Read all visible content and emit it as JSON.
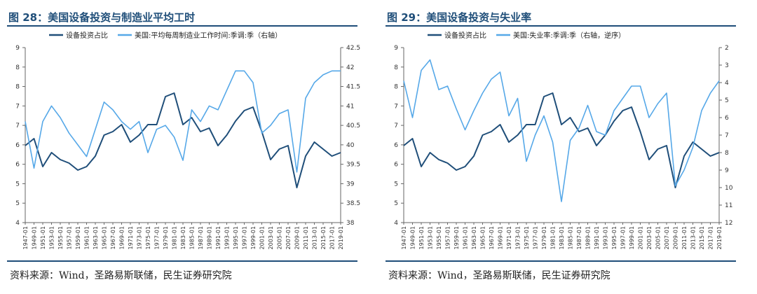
{
  "panels": [
    {
      "title": "图 28：美国设备投资与制造业平均工时",
      "source": "资料来源：Wind，圣路易斯联储，民生证券研究院"
    },
    {
      "title": "图 29：美国设备投资与失业率",
      "source": "资料来源：Wind，圣路易斯联储，民生证券研究院"
    }
  ],
  "colors": {
    "dark": "#1f4e79",
    "light": "#56a8e8",
    "axis": "#666666"
  },
  "chart_data": [
    {
      "type": "line",
      "x_labels": [
        "1947-01",
        "1949-01",
        "1951-01",
        "1953-01",
        "1955-01",
        "1957-01",
        "1959-01",
        "1961-01",
        "1963-01",
        "1965-01",
        "1967-01",
        "1969-01",
        "1971-01",
        "1973-01",
        "1975-01",
        "1977-01",
        "1979-01",
        "1981-01",
        "1983-01",
        "1985-01",
        "1987-01",
        "1989-01",
        "1991-01",
        "1993-01",
        "1995-01",
        "1997-01",
        "1999-01",
        "2001-01",
        "2003-01",
        "2005-01",
        "2007-01",
        "2009-01",
        "2011-01",
        "2013-01",
        "2015-01",
        "2017-01",
        "2019-01"
      ],
      "left_axis": {
        "ticks": [
          "9",
          "8",
          "8",
          "7",
          "7",
          "6",
          "6",
          "5",
          "5",
          "4"
        ],
        "range": [
          4,
          9
        ]
      },
      "right_axis": {
        "ticks": [
          "42.5",
          "42",
          "41.5",
          "41",
          "40.5",
          "40",
          "39.5",
          "39",
          "38.5",
          "38"
        ],
        "range": [
          38,
          42.5
        ],
        "reversed": false
      },
      "series": [
        {
          "name": "设备投资占比",
          "axis": "left",
          "values": [
            6.2,
            6.4,
            5.6,
            6.0,
            5.8,
            5.7,
            5.5,
            5.6,
            5.9,
            6.5,
            6.6,
            6.8,
            6.3,
            6.5,
            6.8,
            6.8,
            7.6,
            7.7,
            6.8,
            7.0,
            6.6,
            6.7,
            6.2,
            6.5,
            6.9,
            7.2,
            7.3,
            6.6,
            5.8,
            6.1,
            6.2,
            5.0,
            5.9,
            6.3,
            6.1,
            5.9,
            6.0
          ]
        },
        {
          "name": "美国:平均每周制造业工作时间:季调:季（右轴）",
          "axis": "right",
          "values": [
            40.6,
            39.4,
            40.6,
            41.0,
            40.7,
            40.3,
            40.0,
            39.7,
            40.4,
            41.1,
            40.9,
            40.6,
            40.4,
            40.6,
            39.8,
            40.4,
            40.5,
            40.2,
            39.6,
            40.9,
            40.6,
            41.0,
            40.9,
            41.4,
            41.9,
            41.9,
            41.6,
            40.3,
            40.5,
            40.8,
            40.9,
            39.3,
            41.2,
            41.6,
            41.8,
            41.9,
            41.9
          ]
        }
      ]
    },
    {
      "type": "line",
      "x_labels": [
        "1947-01",
        "1949-01",
        "1951-01",
        "1953-01",
        "1955-01",
        "1957-01",
        "1959-01",
        "1961-01",
        "1963-01",
        "1965-01",
        "1967-01",
        "1969-01",
        "1971-01",
        "1973-01",
        "1975-01",
        "1977-01",
        "1979-01",
        "1981-01",
        "1983-01",
        "1985-01",
        "1987-01",
        "1989-01",
        "1991-01",
        "1993-01",
        "1995-01",
        "1997-01",
        "1999-01",
        "2001-01",
        "2003-01",
        "2005-01",
        "2007-01",
        "2009-01",
        "2011-01",
        "2013-01",
        "2015-01",
        "2017-01",
        "2019-01"
      ],
      "left_axis": {
        "ticks": [
          "9",
          "8",
          "8",
          "7",
          "7",
          "6",
          "6",
          "5",
          "5",
          "4"
        ],
        "range": [
          4,
          9
        ]
      },
      "right_axis": {
        "ticks": [
          "2",
          "3",
          "4",
          "5",
          "6",
          "7",
          "8",
          "9",
          "10",
          "11",
          "12"
        ],
        "range": [
          2,
          12
        ],
        "reversed": true
      },
      "series": [
        {
          "name": "设备投资占比",
          "axis": "left",
          "values": [
            6.2,
            6.4,
            5.6,
            6.0,
            5.8,
            5.7,
            5.5,
            5.6,
            5.9,
            6.5,
            6.6,
            6.8,
            6.3,
            6.5,
            6.8,
            6.8,
            7.6,
            7.7,
            6.8,
            7.0,
            6.6,
            6.7,
            6.2,
            6.5,
            6.9,
            7.2,
            7.3,
            6.6,
            5.8,
            6.1,
            6.2,
            5.0,
            5.9,
            6.3,
            6.1,
            5.9,
            6.0
          ]
        },
        {
          "name": "美国:失业率:季调:季（右轴，逆序）",
          "axis": "right",
          "values": [
            3.9,
            6.0,
            3.3,
            2.7,
            4.4,
            4.2,
            5.5,
            6.7,
            5.6,
            4.6,
            3.8,
            3.4,
            5.9,
            4.9,
            8.5,
            7.0,
            5.9,
            7.4,
            10.8,
            7.3,
            6.6,
            5.3,
            6.8,
            7.0,
            5.6,
            4.9,
            4.2,
            4.2,
            6.0,
            5.2,
            4.6,
            9.9,
            9.0,
            7.7,
            5.6,
            4.6,
            3.9
          ]
        }
      ]
    }
  ]
}
